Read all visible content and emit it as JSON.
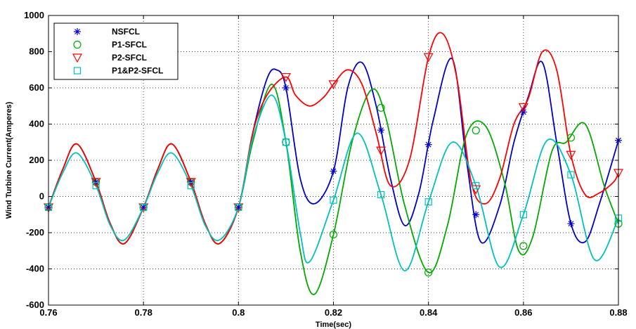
{
  "chart_data": {
    "type": "line",
    "xlabel": "Time(sec)",
    "ylabel": "Wind Turbine Current(Amperes)",
    "xlim": [
      0.76,
      0.88
    ],
    "ylim": [
      -600,
      1000
    ],
    "xticks": [
      0.76,
      0.78,
      0.8,
      0.82,
      0.84,
      0.86,
      0.88
    ],
    "xtick_labels": [
      "0.76",
      "0.78",
      "0.8",
      "0.82",
      "0.84",
      "0.86",
      "0.88"
    ],
    "yticks": [
      -600,
      -400,
      -200,
      0,
      200,
      400,
      600,
      800,
      1000
    ],
    "ytick_labels": [
      "-600",
      "-400",
      "-200",
      "0",
      "200",
      "400",
      "600",
      "800",
      "1000"
    ],
    "grid": true,
    "legend_position": "top-left",
    "series": [
      {
        "name": "NSFCL",
        "color": "#0000cc",
        "marker": "star",
        "x": [
          0.76,
          0.763,
          0.766,
          0.77,
          0.773,
          0.776,
          0.78,
          0.783,
          0.786,
          0.79,
          0.793,
          0.796,
          0.8,
          0.803,
          0.806,
          0.808,
          0.81,
          0.813,
          0.816,
          0.82,
          0.823,
          0.826,
          0.829,
          0.832,
          0.835,
          0.838,
          0.841,
          0.845,
          0.848,
          0.851,
          0.855,
          0.858,
          0.861,
          0.864,
          0.867,
          0.87,
          0.873,
          0.876,
          0.88
        ],
        "y": [
          -60,
          150,
          290,
          80,
          -150,
          -260,
          -60,
          150,
          290,
          80,
          -150,
          -260,
          -60,
          350,
          650,
          700,
          600,
          100,
          -40,
          140,
          600,
          740,
          500,
          100,
          -160,
          20,
          420,
          760,
          200,
          -250,
          -50,
          300,
          550,
          740,
          300,
          -150,
          -250,
          -40,
          310
        ]
      },
      {
        "name": "P1-SFCL",
        "color": "#00aa00",
        "marker": "circle",
        "x": [
          0.76,
          0.763,
          0.766,
          0.77,
          0.773,
          0.776,
          0.78,
          0.783,
          0.786,
          0.79,
          0.793,
          0.796,
          0.8,
          0.803,
          0.807,
          0.81,
          0.813,
          0.816,
          0.82,
          0.824,
          0.828,
          0.831,
          0.835,
          0.84,
          0.844,
          0.848,
          0.852,
          0.856,
          0.859,
          0.862,
          0.866,
          0.869,
          0.873,
          0.877,
          0.88
        ],
        "y": [
          -60,
          150,
          290,
          80,
          -150,
          -260,
          -60,
          150,
          290,
          80,
          -150,
          -260,
          -60,
          300,
          620,
          300,
          -300,
          -540,
          -210,
          310,
          590,
          440,
          -50,
          -420,
          -160,
          340,
          390,
          80,
          -300,
          -220,
          250,
          300,
          400,
          60,
          -150
        ]
      },
      {
        "name": "P2-SFCL",
        "color": "#ff0000",
        "marker": "triangle-down",
        "x": [
          0.76,
          0.763,
          0.766,
          0.77,
          0.773,
          0.776,
          0.78,
          0.783,
          0.786,
          0.79,
          0.793,
          0.796,
          0.8,
          0.803,
          0.806,
          0.81,
          0.812,
          0.815,
          0.818,
          0.82,
          0.823,
          0.826,
          0.829,
          0.832,
          0.836,
          0.84,
          0.843,
          0.846,
          0.849,
          0.852,
          0.855,
          0.858,
          0.861,
          0.864,
          0.867,
          0.87,
          0.873,
          0.876,
          0.879,
          0.88
        ],
        "y": [
          -60,
          150,
          290,
          80,
          -150,
          -260,
          -60,
          150,
          290,
          80,
          -150,
          -260,
          -60,
          350,
          560,
          660,
          560,
          500,
          550,
          620,
          700,
          620,
          350,
          60,
          200,
          770,
          900,
          650,
          80,
          -40,
          100,
          400,
          540,
          800,
          700,
          230,
          10,
          20,
          80,
          130
        ]
      },
      {
        "name": "P1&P2-SFCL",
        "color": "#00c0c0",
        "marker": "square",
        "x": [
          0.76,
          0.763,
          0.766,
          0.77,
          0.773,
          0.776,
          0.78,
          0.783,
          0.786,
          0.79,
          0.793,
          0.796,
          0.8,
          0.803,
          0.807,
          0.81,
          0.813,
          0.815,
          0.82,
          0.825,
          0.83,
          0.835,
          0.84,
          0.845,
          0.85,
          0.855,
          0.86,
          0.865,
          0.87,
          0.875,
          0.88
        ],
        "y": [
          -60,
          130,
          240,
          60,
          -160,
          -240,
          -60,
          130,
          240,
          60,
          -160,
          -240,
          -60,
          320,
          560,
          300,
          -200,
          -360,
          -20,
          350,
          10,
          -410,
          -30,
          300,
          60,
          -390,
          -100,
          310,
          120,
          -350,
          -120
        ]
      }
    ]
  }
}
